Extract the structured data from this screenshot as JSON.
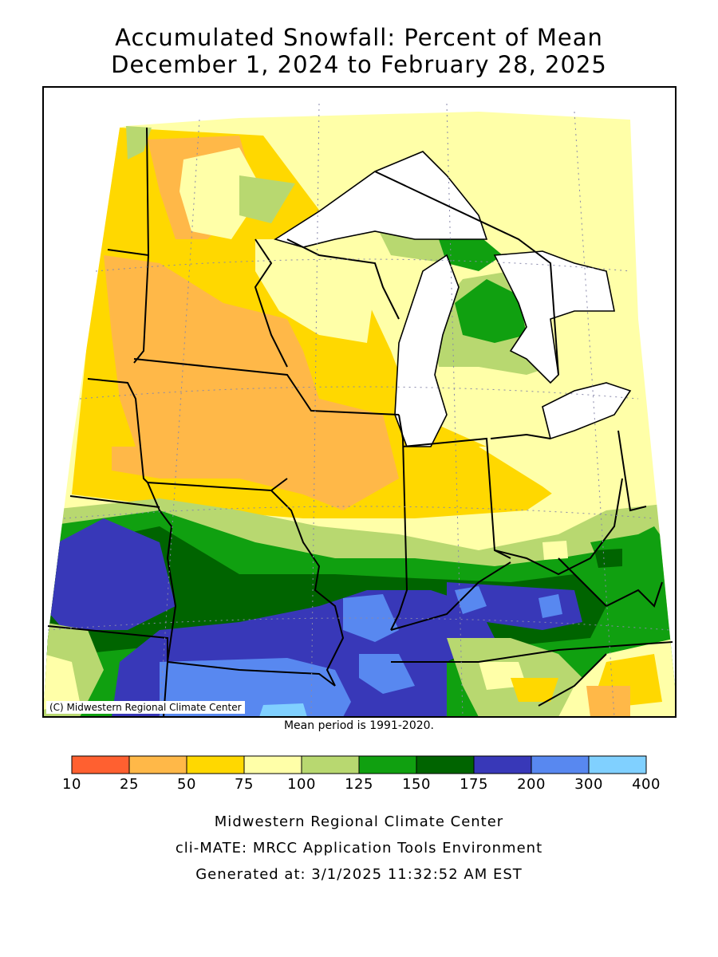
{
  "title": {
    "line1": "Accumulated Snowfall: Percent of Mean",
    "line2": "December 1, 2024 to February 28, 2025"
  },
  "map": {
    "credit": "(C) Midwestern Regional Climate Center",
    "mean_period": "Mean period is 1991-2020."
  },
  "legend": {
    "ticks": [
      "10",
      "25",
      "50",
      "75",
      "100",
      "125",
      "150",
      "175",
      "200",
      "300",
      "400"
    ],
    "colors": [
      "#ff6030",
      "#ffb848",
      "#ffd800",
      "#ffffa8",
      "#b8d870",
      "#10a010",
      "#006400",
      "#3838b8",
      "#5888f0",
      "#80d0ff"
    ]
  },
  "footer": {
    "line1": "Midwestern Regional Climate Center",
    "line2": "cli-MATE: MRCC Application Tools Environment",
    "line3": "Generated at: 3/1/2025 11:32:52 AM EST"
  }
}
